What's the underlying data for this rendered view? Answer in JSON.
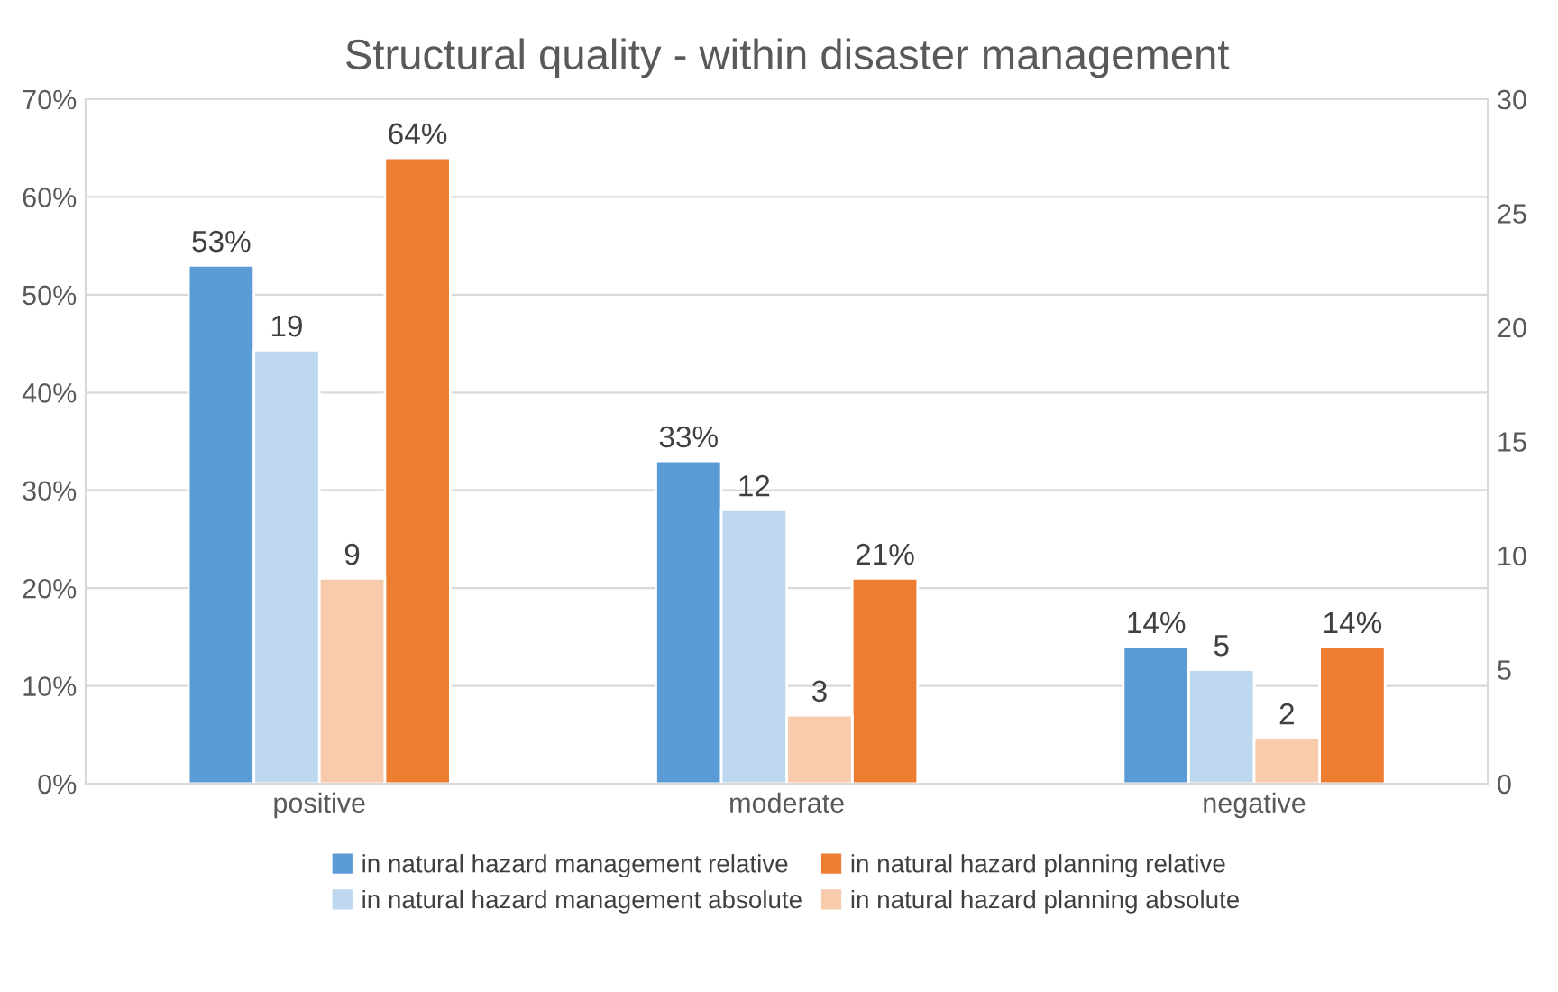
{
  "chart_data": {
    "type": "bar",
    "title": "Structural quality - within disaster management",
    "categories": [
      "positive",
      "moderate",
      "negative"
    ],
    "series": [
      {
        "name": "in natural hazard management relative",
        "color": "#5b9bd5",
        "values": [
          53,
          33,
          14
        ],
        "value_labels": [
          "53%",
          "33%",
          "14%"
        ]
      },
      {
        "name": "in natural hazard management absolute",
        "color": "#bdd7ee",
        "values": [
          19,
          12,
          5
        ],
        "axis": "y2",
        "value_labels": [
          "19",
          "12",
          "5"
        ]
      },
      {
        "name": "in natural hazard planning absolute",
        "color": "#f8cbad",
        "values": [
          9,
          3,
          2
        ],
        "axis": "y2",
        "value_labels": [
          "9",
          "3",
          "2"
        ]
      },
      {
        "name": "in natural hazard planning relative",
        "color": "#ed7d31",
        "values": [
          64,
          21,
          14
        ],
        "value_labels": [
          "64%",
          "21%",
          "14%"
        ]
      }
    ],
    "ylim": [
      0,
      70
    ],
    "yticks": [
      {
        "value": 0,
        "label": "0%"
      },
      {
        "value": 10,
        "label": "10%"
      },
      {
        "value": 20,
        "label": "20%"
      },
      {
        "value": 30,
        "label": "30%"
      },
      {
        "value": 40,
        "label": "40%"
      },
      {
        "value": 50,
        "label": "50%"
      },
      {
        "value": 60,
        "label": "60%"
      },
      {
        "value": 70,
        "label": "70%"
      }
    ],
    "y2lim": [
      0,
      30
    ],
    "y2ticks": [
      0,
      5,
      10,
      15,
      20,
      25,
      30
    ],
    "grid": "y",
    "legend": "bottom"
  }
}
